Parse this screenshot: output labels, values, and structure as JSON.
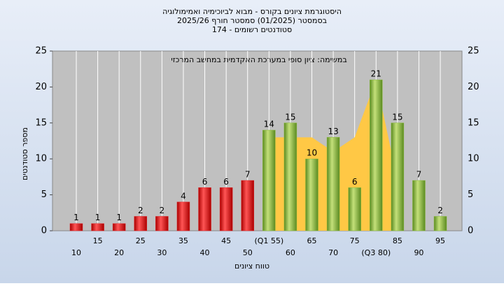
{
  "chart_data": {
    "type": "bar",
    "title": "היסטוגרמת ציונים בקורס - מבוא לביוכימיה ואמימולוגיה",
    "subtitle": "בסמסטר  (01/2025)  סמסטר חורף 2025/26",
    "subtitle2": "סטודנטים רשומים - 174",
    "annotation": "במשימה: ציון סופי במערכת האקדמית במחשב המרכזי",
    "y_label": "מספר סטודנטים",
    "x_label": "טווח ציונים",
    "categories": [
      "10",
      "15",
      "20",
      "25",
      "30",
      "35",
      "40",
      "45",
      "50",
      "(Q1 55)",
      "60",
      "65",
      "70",
      "75",
      "(Q3 80)",
      "85",
      "90",
      "95"
    ],
    "series": [
      {
        "color": "#e0262a",
        "values": [
          1,
          1,
          1,
          2,
          2,
          4,
          6,
          6,
          7,
          null,
          null,
          null,
          null,
          null,
          null,
          null,
          null,
          null
        ]
      },
      {
        "color": "#8cbc3c",
        "values": [
          null,
          null,
          null,
          null,
          null,
          null,
          null,
          null,
          null,
          14,
          15,
          10,
          13,
          6,
          21,
          15,
          7,
          2
        ]
      }
    ],
    "band": {
      "color": "#ffc845",
      "values": [
        null,
        null,
        null,
        null,
        null,
        null,
        null,
        null,
        null,
        13,
        13,
        13,
        11,
        13,
        21,
        7,
        null,
        null
      ]
    },
    "ylim": [
      0,
      25
    ],
    "yticks": [
      0,
      5,
      10,
      15,
      20,
      25
    ],
    "grid": true
  }
}
